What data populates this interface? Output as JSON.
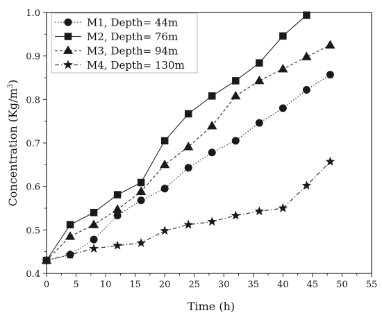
{
  "chart_data": {
    "type": "line",
    "xlabel": "Time (h)",
    "ylabel_main": "Concentration (Kg/m",
    "ylabel_sup": "3",
    "ylabel_tail": ")",
    "xlim": [
      0,
      55
    ],
    "ylim": [
      0.4,
      1.0
    ],
    "xticks": [
      0,
      5,
      10,
      15,
      20,
      25,
      30,
      35,
      40,
      45,
      50,
      55
    ],
    "yticks": [
      0.4,
      0.5,
      0.6,
      0.7,
      0.8,
      0.9,
      1.0
    ],
    "xtick_labels": [
      "0",
      "5",
      "10",
      "15",
      "20",
      "25",
      "30",
      "35",
      "40",
      "45",
      "50",
      "55"
    ],
    "ytick_labels": [
      "0.4",
      "0.5",
      "0.6",
      "0.7",
      "0.8",
      "0.9",
      "1.0"
    ],
    "grid": false,
    "legend_position": "top-left",
    "series": [
      {
        "name": "M1, Depth= 44m",
        "marker": "circle",
        "dash": "dotted",
        "x": [
          0,
          4,
          8,
          12,
          16,
          20,
          24,
          28,
          32,
          36,
          40,
          44,
          48
        ],
        "y": [
          0.43,
          0.443,
          0.478,
          0.533,
          0.568,
          0.595,
          0.643,
          0.678,
          0.705,
          0.746,
          0.78,
          0.822,
          0.857
        ]
      },
      {
        "name": "M2, Depth= 76m",
        "marker": "square",
        "dash": "solid",
        "x": [
          0,
          4,
          8,
          12,
          16,
          20,
          24,
          28,
          32,
          36,
          40,
          44
        ],
        "y": [
          0.43,
          0.512,
          0.54,
          0.581,
          0.609,
          0.705,
          0.767,
          0.808,
          0.843,
          0.884,
          0.946,
          0.994
        ]
      },
      {
        "name": "M3, Depth= 94m",
        "marker": "triangle",
        "dash": "short-dash",
        "x": [
          0,
          4,
          8,
          12,
          16,
          20,
          24,
          28,
          32,
          36,
          40,
          44,
          48
        ],
        "y": [
          0.43,
          0.485,
          0.512,
          0.547,
          0.588,
          0.65,
          0.691,
          0.739,
          0.808,
          0.843,
          0.87,
          0.898,
          0.925
        ]
      },
      {
        "name": "M4, Depth= 130m",
        "marker": "star",
        "dash": "dash-dot",
        "x": [
          0,
          4,
          8,
          12,
          16,
          20,
          24,
          28,
          32,
          36,
          40,
          44,
          48
        ],
        "y": [
          0.43,
          0.443,
          0.457,
          0.464,
          0.47,
          0.498,
          0.512,
          0.519,
          0.533,
          0.543,
          0.55,
          0.602,
          0.657
        ]
      }
    ]
  }
}
